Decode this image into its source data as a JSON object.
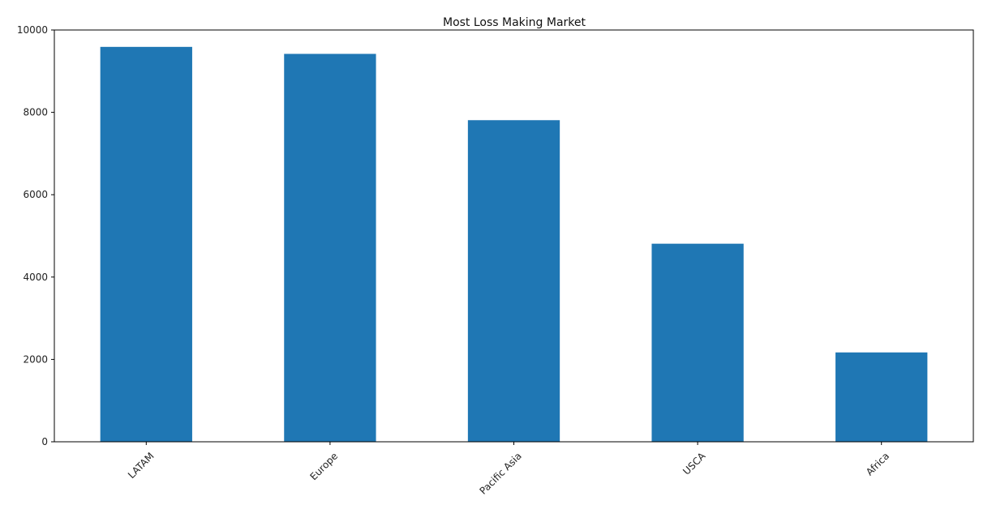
{
  "chart_data": {
    "type": "bar",
    "title": "Most Loss Making Market",
    "xlabel": "",
    "ylabel": "",
    "categories": [
      "LATAM",
      "Europe",
      "Pacific Asia",
      "USCA",
      "Africa"
    ],
    "values": [
      9590,
      9420,
      7810,
      4810,
      2170
    ],
    "ylim": [
      0,
      10000
    ],
    "yticks": [
      0,
      2000,
      4000,
      6000,
      8000,
      10000
    ],
    "xtick_rotation_deg": 45,
    "grid": false,
    "legend": "none",
    "bar_color": "#1f77b4"
  }
}
